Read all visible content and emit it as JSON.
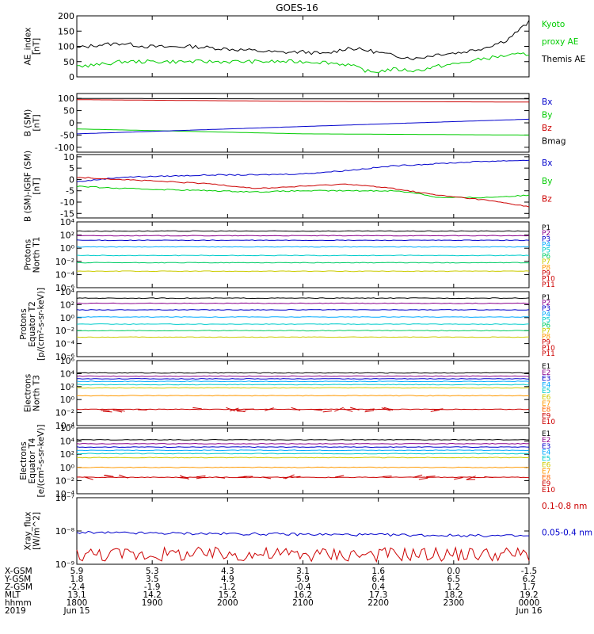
{
  "title": "GOES-16",
  "chart_data": [
    {
      "type": "line",
      "id": "ae",
      "ylabel": "AE_index\n[nT]",
      "ylim": [
        0,
        200
      ],
      "yscale": "linear",
      "yticks": [
        "200",
        "150",
        "100",
        "50",
        "0"
      ],
      "yticks_values": [
        200,
        150,
        100,
        50,
        0
      ],
      "legend_placement": "right",
      "legend": [
        {
          "label": "Kyoto",
          "color": "#00cc00"
        },
        {
          "label": "proxy AE",
          "color": "#00cc00"
        },
        {
          "label": "Themis AE",
          "color": "#000000"
        }
      ],
      "series": [
        {
          "name": "Themis AE",
          "color": "#000000",
          "x": [
            0,
            0.05,
            0.1,
            0.15,
            0.2,
            0.25,
            0.3,
            0.35,
            0.4,
            0.45,
            0.5,
            0.55,
            0.6,
            0.65,
            0.7,
            0.75,
            0.8,
            0.85,
            0.9,
            0.95,
            1.0
          ],
          "values": [
            95,
            105,
            110,
            100,
            98,
            100,
            95,
            90,
            85,
            80,
            82,
            75,
            95,
            85,
            70,
            60,
            75,
            80,
            95,
            120,
            180
          ]
        },
        {
          "name": "Kyoto proxy AE",
          "color": "#00cc00",
          "x": [
            0,
            0.05,
            0.1,
            0.15,
            0.2,
            0.3,
            0.4,
            0.5,
            0.55,
            0.6,
            0.65,
            0.7,
            0.75,
            0.8,
            0.85,
            0.9,
            0.95,
            1.0
          ],
          "values": [
            35,
            40,
            50,
            50,
            50,
            50,
            50,
            50,
            48,
            40,
            15,
            25,
            20,
            35,
            45,
            60,
            70,
            75
          ]
        }
      ]
    },
    {
      "type": "line",
      "id": "bsm",
      "ylabel": "B (SM)\n[nT]",
      "ylim": [
        -120,
        120
      ],
      "yscale": "linear",
      "yticks": [
        "100",
        "50",
        "0",
        "-50",
        "-100"
      ],
      "yticks_values": [
        100,
        50,
        0,
        -50,
        -100
      ],
      "legend_placement": "right",
      "legend": [
        {
          "label": "Bx",
          "color": "#0000cc"
        },
        {
          "label": "By",
          "color": "#00cc00"
        },
        {
          "label": "Bz",
          "color": "#cc0000"
        },
        {
          "label": "Bmag",
          "color": "#000000"
        }
      ],
      "series": [
        {
          "name": "Bmag",
          "color": "#000000",
          "x": [
            0,
            0.5,
            1.0
          ],
          "values": [
            100,
            98,
            98
          ]
        },
        {
          "name": "Bz",
          "color": "#cc0000",
          "x": [
            0,
            0.5,
            1.0
          ],
          "values": [
            95,
            88,
            85
          ]
        },
        {
          "name": "By",
          "color": "#00cc00",
          "x": [
            0,
            0.5,
            1.0
          ],
          "values": [
            -25,
            -45,
            -50
          ]
        },
        {
          "name": "Bx",
          "color": "#0000cc",
          "x": [
            0,
            0.5,
            1.0
          ],
          "values": [
            -45,
            -15,
            15
          ]
        }
      ]
    },
    {
      "type": "line",
      "id": "bigrf",
      "ylabel": "B (SM)-IGRF (SM)\n[nT]",
      "ylim": [
        -17,
        11
      ],
      "yscale": "linear",
      "yticks": [
        "10",
        "5",
        "0",
        "-5",
        "-10",
        "-15"
      ],
      "yticks_values": [
        10,
        5,
        0,
        -5,
        -10,
        -15
      ],
      "legend_placement": "right",
      "legend": [
        {
          "label": "Bx",
          "color": "#0000cc"
        },
        {
          "label": "By",
          "color": "#00cc00"
        },
        {
          "label": "Bz",
          "color": "#cc0000"
        }
      ],
      "series": [
        {
          "name": "Bx",
          "color": "#0000cc",
          "x": [
            0,
            0.1,
            0.2,
            0.3,
            0.4,
            0.5,
            0.6,
            0.7,
            0.8,
            0.9,
            1.0
          ],
          "values": [
            -1,
            1,
            1.5,
            2,
            2,
            2.5,
            4,
            6,
            7,
            8,
            8.5
          ]
        },
        {
          "name": "By",
          "color": "#00cc00",
          "x": [
            0,
            0.1,
            0.2,
            0.3,
            0.4,
            0.5,
            0.6,
            0.7,
            0.75,
            0.8,
            0.9,
            1.0
          ],
          "values": [
            -3,
            -4,
            -4.5,
            -5,
            -5.5,
            -5,
            -5,
            -5,
            -6,
            -8,
            -8,
            -7
          ]
        },
        {
          "name": "Bz",
          "color": "#cc0000",
          "x": [
            0,
            0.1,
            0.2,
            0.3,
            0.4,
            0.5,
            0.6,
            0.7,
            0.8,
            0.9,
            1.0
          ],
          "values": [
            1,
            0,
            -1,
            -2,
            -4,
            -3,
            -2,
            -4,
            -7,
            -9,
            -12
          ]
        }
      ]
    },
    {
      "type": "line",
      "id": "p-north",
      "ylabel": "Protons\nNorth T1",
      "ylim": [
        -6,
        4
      ],
      "yscale": "log",
      "yticks": [
        "10⁴",
        "10²",
        "10⁰",
        "10⁻²",
        "10⁻⁴",
        "10⁻⁶"
      ],
      "yticks_values": [
        4,
        2,
        0,
        -2,
        -4,
        -6
      ],
      "legend_placement": "right",
      "legend": [
        {
          "label": "P1",
          "color": "#000000"
        },
        {
          "label": "P2",
          "color": "#8b008b"
        },
        {
          "label": "P3",
          "color": "#0000cc"
        },
        {
          "label": "P4",
          "color": "#00aaff"
        },
        {
          "label": "P5",
          "color": "#00cccc"
        },
        {
          "label": "P6",
          "color": "#00cc66"
        },
        {
          "label": "P7",
          "color": "#cccc00"
        },
        {
          "label": "P8",
          "color": "#ff9900"
        },
        {
          "label": "P9",
          "color": "#cc0000"
        },
        {
          "label": "P10",
          "color": "#cc0000"
        },
        {
          "label": "P11",
          "color": "#cc0000"
        }
      ],
      "series": [
        {
          "name": "P1",
          "color": "#000000",
          "x": [
            0,
            1
          ],
          "values": [
            2.6,
            2.6
          ]
        },
        {
          "name": "P2",
          "color": "#8b008b",
          "x": [
            0,
            1
          ],
          "values": [
            1.9,
            1.9
          ]
        },
        {
          "name": "P3",
          "color": "#0000cc",
          "x": [
            0,
            1
          ],
          "values": [
            1.2,
            1.2
          ]
        },
        {
          "name": "P4",
          "color": "#00aaff",
          "x": [
            0,
            1
          ],
          "values": [
            0.2,
            0.2
          ]
        },
        {
          "name": "P5",
          "color": "#00cccc",
          "x": [
            0,
            1
          ],
          "values": [
            -1.1,
            -1.1
          ]
        },
        {
          "name": "P6",
          "color": "#00cc66",
          "x": [
            0,
            1
          ],
          "values": [
            -2.2,
            -2.2
          ]
        },
        {
          "name": "P7",
          "color": "#cccc00",
          "x": [
            0,
            1
          ],
          "values": [
            -3.5,
            -3.5
          ]
        }
      ]
    },
    {
      "type": "line",
      "id": "p-equator",
      "ylabel": "Protons\nEquator T2\n[p/(cm²-s-sr-keV)]",
      "ylim": [
        -6,
        4
      ],
      "yscale": "log",
      "yticks": [
        "10⁴",
        "10²",
        "10⁰",
        "10⁻²",
        "10⁻⁴",
        "10⁻⁶"
      ],
      "yticks_values": [
        4,
        2,
        0,
        -2,
        -4,
        -6
      ],
      "legend_placement": "right",
      "legend": [
        {
          "label": "P1",
          "color": "#000000"
        },
        {
          "label": "P2",
          "color": "#8b008b"
        },
        {
          "label": "P3",
          "color": "#0000cc"
        },
        {
          "label": "P4",
          "color": "#00aaff"
        },
        {
          "label": "P5",
          "color": "#00cccc"
        },
        {
          "label": "P6",
          "color": "#00cc66"
        },
        {
          "label": "P7",
          "color": "#cccc00"
        },
        {
          "label": "P8",
          "color": "#ff9900"
        },
        {
          "label": "P9",
          "color": "#cc0000"
        },
        {
          "label": "P10",
          "color": "#cc0000"
        },
        {
          "label": "P11",
          "color": "#cc0000"
        }
      ],
      "series": [
        {
          "name": "P1",
          "color": "#000000",
          "x": [
            0,
            1
          ],
          "values": [
            3.0,
            3.0
          ]
        },
        {
          "name": "P2",
          "color": "#8b008b",
          "x": [
            0,
            1
          ],
          "values": [
            2.2,
            2.2
          ]
        },
        {
          "name": "P3",
          "color": "#0000cc",
          "x": [
            0,
            1
          ],
          "values": [
            1.2,
            1.2
          ]
        },
        {
          "name": "P4",
          "color": "#00aaff",
          "x": [
            0,
            1
          ],
          "values": [
            0.1,
            0.1
          ]
        },
        {
          "name": "P5",
          "color": "#00cccc",
          "x": [
            0,
            1
          ],
          "values": [
            -1.0,
            -1.0
          ]
        },
        {
          "name": "P6",
          "color": "#00cc66",
          "x": [
            0,
            1
          ],
          "values": [
            -2.0,
            -2.0
          ]
        },
        {
          "name": "P7",
          "color": "#cccc00",
          "x": [
            0,
            1
          ],
          "values": [
            -3.0,
            -3.0
          ]
        }
      ]
    },
    {
      "type": "line",
      "id": "e-north",
      "ylabel": "Electrons\nNorth T3",
      "ylim": [
        -4,
        6
      ],
      "yscale": "log",
      "yticks": [
        "10⁶",
        "10⁴",
        "10²",
        "10⁰",
        "10⁻²",
        "10⁻⁴"
      ],
      "yticks_values": [
        6,
        4,
        2,
        0,
        -2,
        -4
      ],
      "legend_placement": "right",
      "legend": [
        {
          "label": "E1",
          "color": "#000000"
        },
        {
          "label": "E2",
          "color": "#8b008b"
        },
        {
          "label": "E3",
          "color": "#0000cc"
        },
        {
          "label": "E4",
          "color": "#00aaff"
        },
        {
          "label": "E5",
          "color": "#00cccc"
        },
        {
          "label": "E6",
          "color": "#cccc00"
        },
        {
          "label": "E7",
          "color": "#ff9900"
        },
        {
          "label": "E8",
          "color": "#ff6600"
        },
        {
          "label": "E9",
          "color": "#cc0000"
        },
        {
          "label": "E10",
          "color": "#cc0000"
        }
      ],
      "series": [
        {
          "name": "E1",
          "color": "#000000",
          "x": [
            0,
            1
          ],
          "values": [
            4.1,
            4.1
          ]
        },
        {
          "name": "E2",
          "color": "#8b008b",
          "x": [
            0,
            1
          ],
          "values": [
            3.6,
            3.6
          ]
        },
        {
          "name": "E3",
          "color": "#0000cc",
          "x": [
            0,
            1
          ],
          "values": [
            3.2,
            3.2
          ]
        },
        {
          "name": "E4",
          "color": "#00aaff",
          "x": [
            0,
            1
          ],
          "values": [
            2.8,
            2.8
          ]
        },
        {
          "name": "E5",
          "color": "#00cccc",
          "x": [
            0,
            1
          ],
          "values": [
            2.3,
            2.3
          ]
        },
        {
          "name": "E6",
          "color": "#cccc00",
          "x": [
            0,
            1
          ],
          "values": [
            1.8,
            1.8
          ]
        },
        {
          "name": "E7",
          "color": "#ff9900",
          "x": [
            0,
            1
          ],
          "values": [
            0.6,
            0.6
          ]
        },
        {
          "name": "E9",
          "color": "#cc0000",
          "x": [
            0,
            1
          ],
          "values": [
            -1.5,
            -1.5
          ]
        }
      ]
    },
    {
      "type": "line",
      "id": "e-equator",
      "ylabel": "Electrons\nEquator T4\n[e/(cm²-s-sr-keV)]",
      "ylim": [
        -4,
        6
      ],
      "yscale": "log",
      "yticks": [
        "10⁶",
        "10⁴",
        "10²",
        "10⁰",
        "10⁻²",
        "10⁻⁴"
      ],
      "yticks_values": [
        6,
        4,
        2,
        0,
        -2,
        -4
      ],
      "legend_placement": "right",
      "legend": [
        {
          "label": "E1",
          "color": "#000000"
        },
        {
          "label": "E2",
          "color": "#8b008b"
        },
        {
          "label": "E3",
          "color": "#0000cc"
        },
        {
          "label": "E4",
          "color": "#00aaff"
        },
        {
          "label": "E5",
          "color": "#00cccc"
        },
        {
          "label": "E6",
          "color": "#cccc00"
        },
        {
          "label": "E7",
          "color": "#ff9900"
        },
        {
          "label": "E8",
          "color": "#ff6600"
        },
        {
          "label": "E9",
          "color": "#cc0000"
        },
        {
          "label": "E10",
          "color": "#cc0000"
        }
      ],
      "series": [
        {
          "name": "E1",
          "color": "#000000",
          "x": [
            0,
            1
          ],
          "values": [
            4.2,
            4.2
          ]
        },
        {
          "name": "E2",
          "color": "#8b008b",
          "x": [
            0,
            1
          ],
          "values": [
            3.6,
            3.6
          ]
        },
        {
          "name": "E3",
          "color": "#0000cc",
          "x": [
            0,
            1
          ],
          "values": [
            3.1,
            3.1
          ]
        },
        {
          "name": "E4",
          "color": "#00aaff",
          "x": [
            0,
            1
          ],
          "values": [
            2.6,
            2.6
          ]
        },
        {
          "name": "E5",
          "color": "#00cccc",
          "x": [
            0,
            1
          ],
          "values": [
            2.1,
            2.1
          ]
        },
        {
          "name": "E6",
          "color": "#cccc00",
          "x": [
            0,
            1
          ],
          "values": [
            1.5,
            1.5
          ]
        },
        {
          "name": "E7",
          "color": "#ff9900",
          "x": [
            0,
            1
          ],
          "values": [
            0.0,
            0.0
          ]
        },
        {
          "name": "E9",
          "color": "#cc0000",
          "x": [
            0,
            1
          ],
          "values": [
            -1.5,
            -1.5
          ]
        }
      ]
    },
    {
      "type": "line",
      "id": "xray",
      "ylabel": "Xray_flux\n[W/m^2]",
      "ylim": [
        -9,
        -7
      ],
      "yscale": "log",
      "yticks": [
        "10⁻⁷",
        "10⁻⁸",
        "10⁻⁹"
      ],
      "yticks_values": [
        -7,
        -8,
        -9
      ],
      "legend_placement": "right",
      "legend": [
        {
          "label": "0.1-0.8 nm",
          "color": "#cc0000"
        },
        {
          "label": "0.05-0.4 nm",
          "color": "#0000cc"
        }
      ],
      "series": [
        {
          "name": "0.1-0.8 nm",
          "color": "#cc0000",
          "x": [
            0,
            1
          ],
          "values": [
            -8.7,
            -8.7
          ]
        },
        {
          "name": "0.05-0.4 nm",
          "color": "#0000cc",
          "x": [
            0,
            1
          ],
          "values": [
            -8.05,
            -8.15
          ]
        }
      ]
    }
  ],
  "ephemeris": {
    "rows": [
      {
        "label": "X-GSM",
        "values": [
          "5.9",
          "5.3",
          "4.3",
          "3.1",
          "1.6",
          "0.0",
          "-1.5"
        ]
      },
      {
        "label": "Y-GSM",
        "values": [
          "1.8",
          "3.5",
          "4.9",
          "5.9",
          "6.4",
          "6.5",
          "6.2"
        ]
      },
      {
        "label": "Z-GSM",
        "values": [
          "-2.4",
          "-1.9",
          "-1.2",
          "-0.4",
          "0.4",
          "1.2",
          "1.7"
        ]
      },
      {
        "label": "MLT",
        "values": [
          "13.1",
          "14.2",
          "15.2",
          "16.2",
          "17.3",
          "18.2",
          "19.2"
        ]
      },
      {
        "label": "hhmm",
        "values": [
          "1800",
          "1900",
          "2000",
          "2100",
          "2200",
          "2300",
          "0000"
        ]
      },
      {
        "label": "2019",
        "values": [
          "Jun 15",
          "",
          "",
          "",
          "",
          "",
          "Jun 16"
        ]
      }
    ]
  }
}
